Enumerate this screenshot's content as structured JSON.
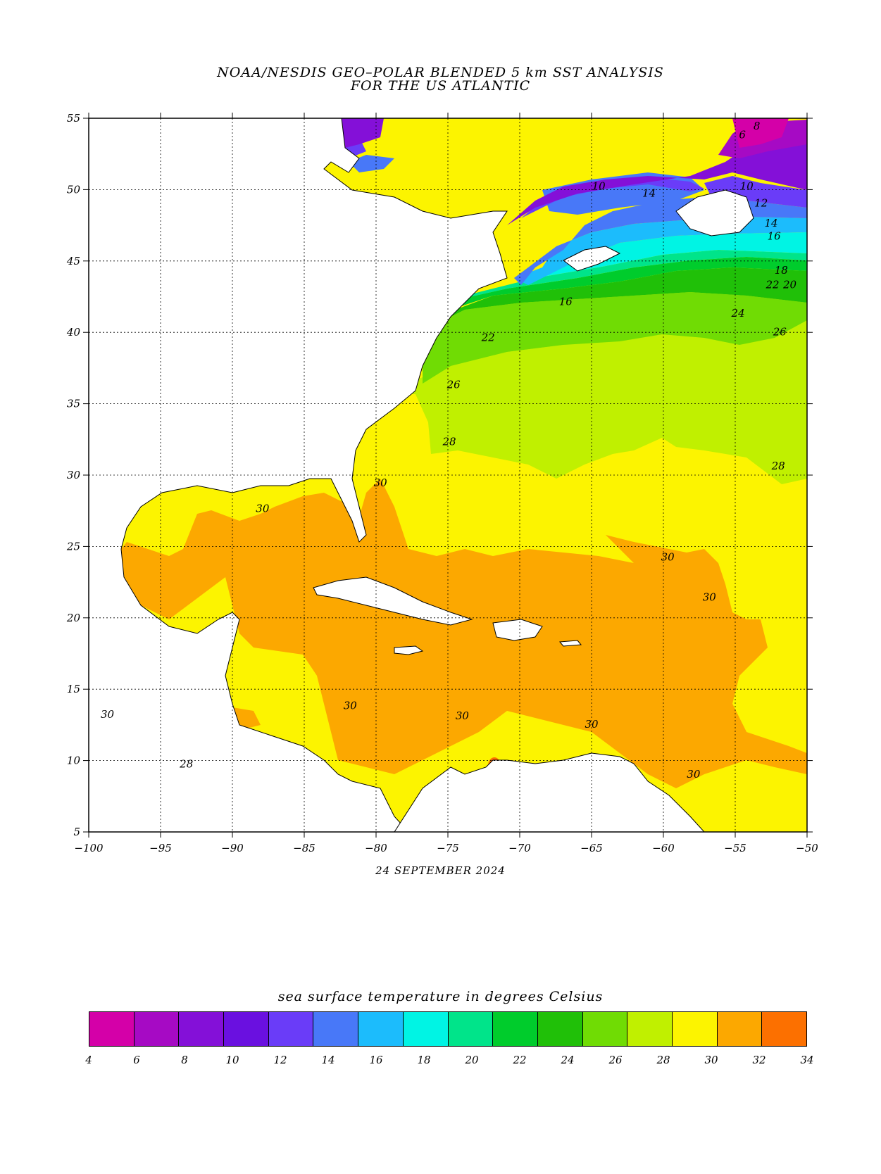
{
  "title_line1": "NOAA/NESDIS GEO–POLAR BLENDED 5 km SST ANALYSIS",
  "title_line2": "FOR THE US ATLANTIC",
  "date": "24 SEPTEMBER 2024",
  "colorbar_title": "sea surface temperature in degrees Celsius",
  "lon_ticks": [
    "−100",
    "−95",
    "−90",
    "−85",
    "−80",
    "−75",
    "−70",
    "−65",
    "−60",
    "−55",
    "−50"
  ],
  "lat_ticks": [
    "55",
    "50",
    "45",
    "40",
    "35",
    "30",
    "25",
    "20",
    "15",
    "10",
    "5"
  ],
  "extent": {
    "lon": [
      -100,
      -50
    ],
    "lat": [
      5,
      55
    ]
  },
  "colorbar": {
    "labels": [
      "4",
      "6",
      "8",
      "10",
      "12",
      "14",
      "16",
      "18",
      "20",
      "22",
      "24",
      "26",
      "28",
      "30",
      "32",
      "34"
    ],
    "colors": [
      "#d400a8",
      "#a60ac4",
      "#8410d8",
      "#6a10e0",
      "#6a3cf8",
      "#4878f8",
      "#1cbcfc",
      "#00f4e4",
      "#00e48a",
      "#00cc2c",
      "#20c008",
      "#70dc04",
      "#c0f000",
      "#fcf400",
      "#fca800",
      "#fc7000"
    ]
  },
  "contour_labels": [
    {
      "text": "6",
      "lon": -54.5,
      "lat": 53.6
    },
    {
      "text": "8",
      "lon": -53.5,
      "lat": 54.2
    },
    {
      "text": "10",
      "lon": -64.5,
      "lat": 50.0
    },
    {
      "text": "14",
      "lon": -61,
      "lat": 49.5
    },
    {
      "text": "10",
      "lon": -54.2,
      "lat": 50.0
    },
    {
      "text": "12",
      "lon": -53.2,
      "lat": 48.8
    },
    {
      "text": "14",
      "lon": -52.5,
      "lat": 47.4
    },
    {
      "text": "16",
      "lon": -52.3,
      "lat": 46.5
    },
    {
      "text": "16",
      "lon": -66.8,
      "lat": 41.9
    },
    {
      "text": "18",
      "lon": -51.8,
      "lat": 44.1
    },
    {
      "text": "22",
      "lon": -52.4,
      "lat": 43.1
    },
    {
      "text": "20",
      "lon": -51.2,
      "lat": 43.1
    },
    {
      "text": "24",
      "lon": -54.8,
      "lat": 41.1
    },
    {
      "text": "22",
      "lon": -72.2,
      "lat": 39.4
    },
    {
      "text": "26",
      "lon": -51.9,
      "lat": 39.8
    },
    {
      "text": "26",
      "lon": -74.6,
      "lat": 36.1
    },
    {
      "text": "28",
      "lon": -74.9,
      "lat": 32.1
    },
    {
      "text": "28",
      "lon": -52.0,
      "lat": 30.4
    },
    {
      "text": "30",
      "lon": -79.7,
      "lat": 29.2
    },
    {
      "text": "30",
      "lon": -87.9,
      "lat": 27.4
    },
    {
      "text": "30",
      "lon": -59.7,
      "lat": 24.0
    },
    {
      "text": "30",
      "lon": -56.8,
      "lat": 21.2
    },
    {
      "text": "30",
      "lon": -81.8,
      "lat": 13.6
    },
    {
      "text": "30",
      "lon": -74.0,
      "lat": 12.9
    },
    {
      "text": "30",
      "lon": -65.0,
      "lat": 12.3
    },
    {
      "text": "30",
      "lon": -98.7,
      "lat": 13.0
    },
    {
      "text": "28",
      "lon": -93.2,
      "lat": 9.5
    },
    {
      "text": "30",
      "lon": -57.9,
      "lat": 8.8
    }
  ]
}
